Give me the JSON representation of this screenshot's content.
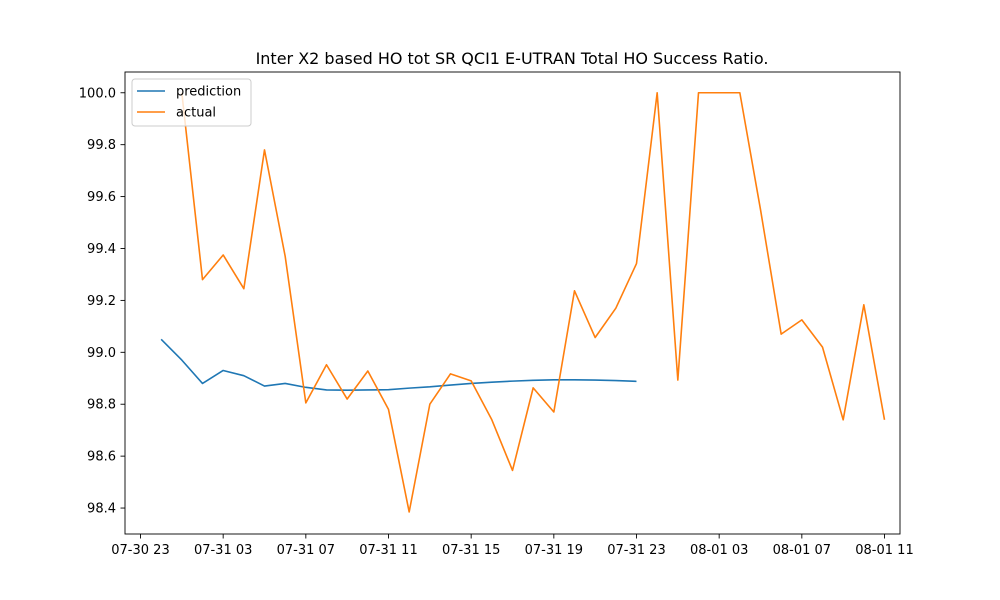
{
  "chart_data": {
    "type": "line",
    "title": "Inter X2 based HO tot SR QCI1 E-UTRAN Total HO Success Ratio.",
    "xlabel": "",
    "ylabel": "",
    "x_ticks": [
      "07-30 23",
      "07-31 03",
      "07-31 07",
      "07-31 11",
      "07-31 15",
      "07-31 19",
      "07-31 23",
      "08-01 03",
      "08-01 07",
      "08-01 11"
    ],
    "y_ticks": [
      "98.4",
      "98.6",
      "98.8",
      "99.0",
      "99.2",
      "99.4",
      "99.6",
      "99.8",
      "100.0"
    ],
    "xlim": [
      "2023-07-30 22:15",
      "2023-08-01 11:45"
    ],
    "ylim": [
      98.3,
      100.08
    ],
    "legend_position": "top-left",
    "grid": false,
    "series": [
      {
        "name": "prediction",
        "color": "#1f77b4",
        "x": [
          "2023-07-31 00:00",
          "2023-07-31 01:00",
          "2023-07-31 02:00",
          "2023-07-31 03:00",
          "2023-07-31 04:00",
          "2023-07-31 05:00",
          "2023-07-31 06:00",
          "2023-07-31 07:00",
          "2023-07-31 08:00",
          "2023-07-31 09:00",
          "2023-07-31 10:00",
          "2023-07-31 11:00",
          "2023-07-31 12:00",
          "2023-07-31 13:00",
          "2023-07-31 14:00",
          "2023-07-31 15:00",
          "2023-07-31 16:00",
          "2023-07-31 17:00",
          "2023-07-31 18:00",
          "2023-07-31 19:00",
          "2023-07-31 20:00",
          "2023-07-31 21:00",
          "2023-07-31 22:00",
          "2023-07-31 23:00"
        ],
        "y": [
          99.05,
          98.97,
          98.88,
          98.93,
          98.91,
          98.87,
          98.88,
          98.865,
          98.855,
          98.854,
          98.855,
          98.856,
          98.862,
          98.867,
          98.874,
          98.88,
          98.885,
          98.889,
          98.892,
          98.894,
          98.894,
          98.893,
          98.891,
          98.888
        ]
      },
      {
        "name": "actual",
        "color": "#ff7f0e",
        "x": [
          "2023-07-31 01:00",
          "2023-07-31 02:00",
          "2023-07-31 03:00",
          "2023-07-31 04:00",
          "2023-07-31 05:00",
          "2023-07-31 06:00",
          "2023-07-31 07:00",
          "2023-07-31 08:00",
          "2023-07-31 09:00",
          "2023-07-31 10:00",
          "2023-07-31 11:00",
          "2023-07-31 12:00",
          "2023-07-31 13:00",
          "2023-07-31 14:00",
          "2023-07-31 15:00",
          "2023-07-31 16:00",
          "2023-07-31 17:00",
          "2023-07-31 18:00",
          "2023-07-31 19:00",
          "2023-07-31 20:00",
          "2023-07-31 21:00",
          "2023-07-31 22:00",
          "2023-07-31 23:00",
          "2023-08-01 00:00",
          "2023-08-01 01:00",
          "2023-08-01 02:00",
          "2023-08-01 03:00",
          "2023-08-01 04:00",
          "2023-08-01 05:00",
          "2023-08-01 06:00",
          "2023-08-01 07:00",
          "2023-08-01 08:00",
          "2023-08-01 09:00",
          "2023-08-01 10:00",
          "2023-08-01 11:00"
        ],
        "y": [
          100.0,
          99.28,
          99.375,
          99.245,
          99.78,
          99.37,
          98.805,
          98.952,
          98.82,
          98.928,
          98.78,
          98.385,
          98.8,
          98.917,
          98.89,
          98.74,
          98.545,
          98.863,
          98.77,
          99.237,
          99.057,
          99.17,
          99.342,
          100.0,
          98.893,
          100.0,
          100.0,
          100.0,
          99.55,
          99.07,
          99.125,
          99.02,
          98.74,
          99.183,
          98.74
        ]
      }
    ]
  }
}
